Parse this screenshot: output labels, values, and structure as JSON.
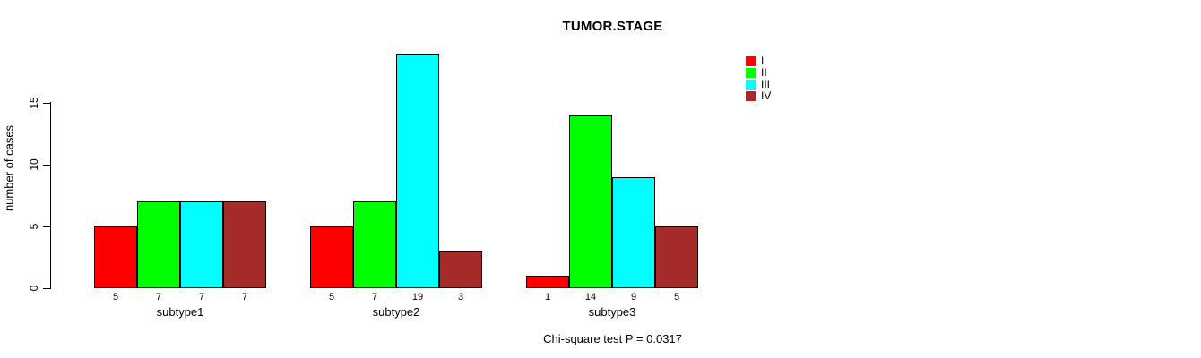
{
  "title": "TUMOR.STAGE",
  "ylabel": "number of cases",
  "footer": "Chi-square test P = 0.0317",
  "legend": {
    "items": [
      {
        "label": "I",
        "color": "#FF0000"
      },
      {
        "label": "II",
        "color": "#00FF00"
      },
      {
        "label": "III",
        "color": "#00FFFF"
      },
      {
        "label": "IV",
        "color": "#A52A2A"
      }
    ]
  },
  "chart_data": {
    "type": "bar",
    "grouped": true,
    "title": "TUMOR.STAGE",
    "xlabel": "",
    "ylabel": "number of cases",
    "categories": [
      "subtype1",
      "subtype2",
      "subtype3"
    ],
    "series": [
      {
        "name": "I",
        "color": "#FF0000",
        "values": [
          5,
          5,
          1
        ]
      },
      {
        "name": "II",
        "color": "#00FF00",
        "values": [
          7,
          7,
          14
        ]
      },
      {
        "name": "III",
        "color": "#00FFFF",
        "values": [
          7,
          19,
          9
        ]
      },
      {
        "name": "IV",
        "color": "#A52A2A",
        "values": [
          7,
          3,
          5
        ]
      }
    ],
    "bar_labels": [
      [
        5,
        7,
        7,
        7
      ],
      [
        5,
        7,
        19,
        3
      ],
      [
        1,
        14,
        9,
        5
      ]
    ],
    "yticks": [
      0,
      5,
      10,
      15
    ],
    "ylim": [
      0,
      19
    ],
    "grid": false,
    "legend_position": "top-right-outside-bars",
    "annotation": "Chi-square test P = 0.0317"
  }
}
